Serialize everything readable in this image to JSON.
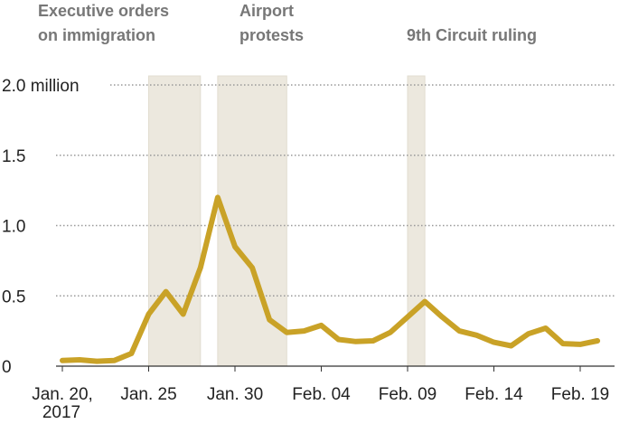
{
  "chart_data": {
    "type": "line",
    "categories": [
      "Jan. 20,",
      null,
      null,
      null,
      null,
      "Jan. 25",
      null,
      null,
      null,
      null,
      "Jan. 30",
      null,
      null,
      null,
      null,
      "Feb. 04",
      null,
      null,
      null,
      null,
      "Feb. 09",
      null,
      null,
      null,
      null,
      "Feb. 14",
      null,
      null,
      null,
      null,
      "Feb. 19",
      null
    ],
    "year_label": "2017",
    "series": [
      {
        "name": null,
        "color": "#c9a227",
        "values": [
          0.04,
          0.045,
          0.035,
          0.04,
          0.09,
          0.37,
          0.53,
          0.37,
          0.7,
          1.2,
          0.85,
          0.7,
          0.33,
          0.24,
          0.25,
          0.29,
          0.19,
          0.175,
          0.18,
          0.24,
          0.35,
          0.46,
          0.35,
          0.25,
          0.22,
          0.17,
          0.145,
          0.23,
          0.27,
          0.16,
          0.155,
          0.18
        ]
      }
    ],
    "ylim": [
      0,
      2
    ],
    "yticks": [
      0,
      0.5,
      {
        "value": 1,
        "label": "1.0"
      },
      1.5,
      {
        "value": 2,
        "label": "2.0 million"
      }
    ],
    "grid": true,
    "highlights": [
      {
        "lines": [
          "Executive orders",
          "on immigration"
        ],
        "range": [
          5,
          8
        ]
      },
      {
        "lines": [
          "Airport",
          "protests"
        ],
        "range": [
          9,
          13
        ]
      },
      {
        "lines": [
          "9th Circuit ruling"
        ],
        "range": [
          20,
          21
        ]
      }
    ],
    "highlight_color": "#ece8de"
  }
}
